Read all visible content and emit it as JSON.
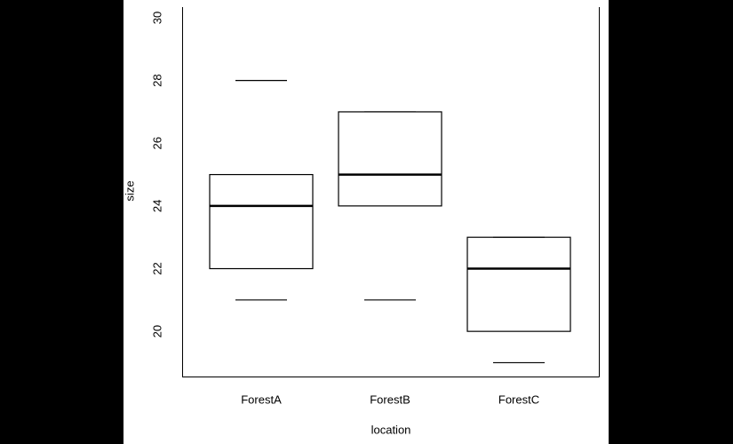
{
  "chart_data": {
    "type": "boxplot",
    "x_label": "location",
    "y_label": "size",
    "categories": [
      "ForestA",
      "ForestB",
      "ForestC"
    ],
    "boxes": [
      {
        "min": 21,
        "q1": 22,
        "median": 24,
        "q3": 25,
        "max": 28
      },
      {
        "min": 21,
        "q1": 24,
        "median": 25,
        "q3": 27,
        "max": 27
      },
      {
        "min": 19,
        "q1": 20,
        "median": 22,
        "q3": 23,
        "max": 23
      }
    ],
    "color": "#000000",
    "ylim": [
      18.56,
      30.34
    ],
    "yticks": [
      20,
      22,
      24,
      26,
      28,
      30
    ]
  }
}
